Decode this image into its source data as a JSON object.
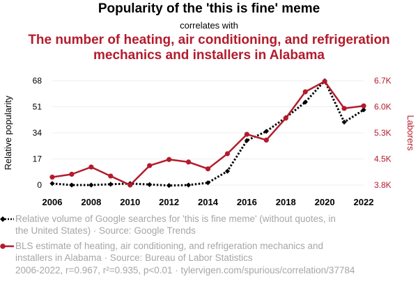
{
  "title": "Popularity of the 'this is fine' meme",
  "correlates": "correlates with",
  "subtitle": "The number of heating, air conditioning, and refrigeration mechanics and installers in Alabama",
  "left_axis_label": "Relative popularity",
  "right_axis_label": "Laborers",
  "colors": {
    "series1": "#000000",
    "series2": "#b31b2c",
    "muted": "#a6a6a6"
  },
  "legend": [
    {
      "marker": "diamond",
      "text": "Relative volume of Google searches for 'this is fine meme' (without quotes, in the United States) · Source: Google Trends"
    },
    {
      "marker": "circle",
      "text": "BLS estimate of heating, air conditioning, and refrigeration mechanics and installers in Alabama · Source: Bureau of Labor Statistics"
    }
  ],
  "stats": "2006-2022, r=0.967, r²=0.935, p<0.01 · tylervigen.com/spurious/correlation/37784",
  "chart_data": {
    "type": "line",
    "x": [
      2006,
      2007,
      2008,
      2009,
      2010,
      2011,
      2012,
      2013,
      2014,
      2015,
      2016,
      2017,
      2018,
      2019,
      2020,
      2021,
      2022
    ],
    "x_ticks": [
      "2006",
      "2008",
      "2010",
      "2012",
      "2014",
      "2016",
      "2018",
      "2020",
      "2022"
    ],
    "y_left": {
      "ticks": [
        "0",
        "17",
        "34",
        "51",
        "68"
      ],
      "tick_values": [
        0,
        17,
        34,
        51,
        68
      ],
      "range": [
        0,
        68
      ]
    },
    "y_right": {
      "ticks": [
        "3.8K",
        "4.5K",
        "5.3K",
        "6.0K",
        "6.7K"
      ],
      "tick_values": [
        3800,
        4525,
        5250,
        5975,
        6700
      ],
      "range": [
        3800,
        6700
      ]
    },
    "series": [
      {
        "name": "Relative volume of Google searches for 'this is fine meme'",
        "axis": "left",
        "style": "dotted",
        "marker": "diamond",
        "values": [
          1,
          0,
          0,
          0.5,
          1,
          0.3,
          -0.3,
          0,
          1.5,
          9,
          29,
          35,
          44,
          54,
          68,
          41,
          49
        ]
      },
      {
        "name": "BLS estimate of HVAC mechanics and installers in Alabama",
        "axis": "right",
        "style": "solid",
        "marker": "circle",
        "values": [
          4020,
          4100,
          4300,
          4050,
          3800,
          4340,
          4510,
          4440,
          4250,
          4670,
          5210,
          5050,
          5660,
          6390,
          6680,
          5930,
          6000
        ]
      }
    ],
    "grid": true
  }
}
